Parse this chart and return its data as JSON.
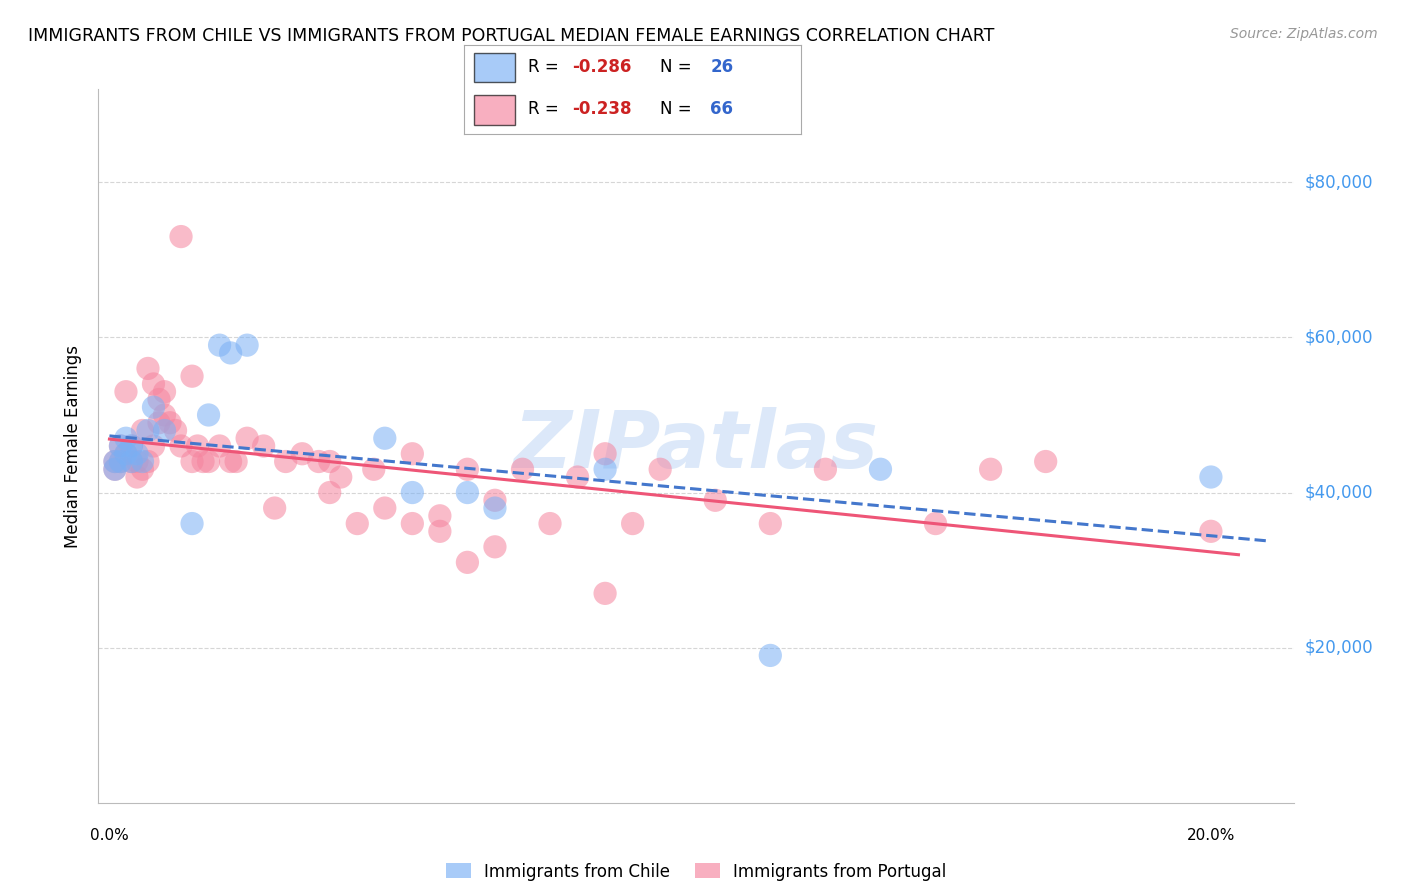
{
  "title": "IMMIGRANTS FROM CHILE VS IMMIGRANTS FROM PORTUGAL MEDIAN FEMALE EARNINGS CORRELATION CHART",
  "source": "Source: ZipAtlas.com",
  "ylabel": "Median Female Earnings",
  "x_ticks": [
    0.0,
    0.04,
    0.08,
    0.12,
    0.16,
    0.2
  ],
  "y_ticks": [
    0,
    20000,
    40000,
    60000,
    80000
  ],
  "y_tick_labels": [
    "",
    "$20,000",
    "$40,000",
    "$60,000",
    "$80,000"
  ],
  "xlim": [
    -0.002,
    0.215
  ],
  "ylim": [
    0,
    92000
  ],
  "chile_R": "-0.286",
  "chile_N": "26",
  "portugal_R": "-0.238",
  "portugal_N": "66",
  "chile_scatter": [
    [
      0.001,
      44000
    ],
    [
      0.001,
      43000
    ],
    [
      0.002,
      46000
    ],
    [
      0.002,
      44000
    ],
    [
      0.003,
      47000
    ],
    [
      0.003,
      45000
    ],
    [
      0.004,
      46000
    ],
    [
      0.004,
      44000
    ],
    [
      0.005,
      45000
    ],
    [
      0.006,
      44000
    ],
    [
      0.007,
      48000
    ],
    [
      0.008,
      51000
    ],
    [
      0.01,
      48000
    ],
    [
      0.015,
      36000
    ],
    [
      0.018,
      50000
    ],
    [
      0.02,
      59000
    ],
    [
      0.022,
      58000
    ],
    [
      0.025,
      59000
    ],
    [
      0.05,
      47000
    ],
    [
      0.055,
      40000
    ],
    [
      0.065,
      40000
    ],
    [
      0.07,
      38000
    ],
    [
      0.09,
      43000
    ],
    [
      0.12,
      19000
    ],
    [
      0.14,
      43000
    ],
    [
      0.2,
      42000
    ]
  ],
  "portugal_scatter": [
    [
      0.001,
      44000
    ],
    [
      0.001,
      43000
    ],
    [
      0.002,
      46000
    ],
    [
      0.002,
      44000
    ],
    [
      0.003,
      45000
    ],
    [
      0.003,
      53000
    ],
    [
      0.004,
      46000
    ],
    [
      0.004,
      44000
    ],
    [
      0.005,
      42000
    ],
    [
      0.005,
      44000
    ],
    [
      0.006,
      48000
    ],
    [
      0.006,
      43000
    ],
    [
      0.007,
      56000
    ],
    [
      0.007,
      44000
    ],
    [
      0.008,
      54000
    ],
    [
      0.008,
      46000
    ],
    [
      0.009,
      49000
    ],
    [
      0.009,
      52000
    ],
    [
      0.01,
      53000
    ],
    [
      0.01,
      50000
    ],
    [
      0.011,
      49000
    ],
    [
      0.012,
      48000
    ],
    [
      0.013,
      46000
    ],
    [
      0.013,
      73000
    ],
    [
      0.015,
      55000
    ],
    [
      0.015,
      44000
    ],
    [
      0.016,
      46000
    ],
    [
      0.017,
      44000
    ],
    [
      0.018,
      44000
    ],
    [
      0.02,
      46000
    ],
    [
      0.022,
      44000
    ],
    [
      0.023,
      44000
    ],
    [
      0.025,
      47000
    ],
    [
      0.028,
      46000
    ],
    [
      0.03,
      38000
    ],
    [
      0.032,
      44000
    ],
    [
      0.035,
      45000
    ],
    [
      0.038,
      44000
    ],
    [
      0.04,
      44000
    ],
    [
      0.04,
      40000
    ],
    [
      0.042,
      42000
    ],
    [
      0.045,
      36000
    ],
    [
      0.048,
      43000
    ],
    [
      0.05,
      38000
    ],
    [
      0.055,
      45000
    ],
    [
      0.055,
      36000
    ],
    [
      0.06,
      37000
    ],
    [
      0.06,
      35000
    ],
    [
      0.065,
      43000
    ],
    [
      0.065,
      31000
    ],
    [
      0.07,
      39000
    ],
    [
      0.07,
      33000
    ],
    [
      0.075,
      43000
    ],
    [
      0.08,
      36000
    ],
    [
      0.085,
      42000
    ],
    [
      0.09,
      45000
    ],
    [
      0.09,
      27000
    ],
    [
      0.095,
      36000
    ],
    [
      0.1,
      43000
    ],
    [
      0.11,
      39000
    ],
    [
      0.12,
      36000
    ],
    [
      0.13,
      43000
    ],
    [
      0.15,
      36000
    ],
    [
      0.16,
      43000
    ],
    [
      0.17,
      44000
    ],
    [
      0.2,
      35000
    ]
  ],
  "chile_color": "#7ab0f5",
  "portugal_color": "#f5849e",
  "chile_line_color": "#4477cc",
  "portugal_line_color": "#ee5577",
  "watermark": "ZIPatlas",
  "watermark_color": "#c5daf5",
  "background_color": "#ffffff",
  "grid_color": "#cccccc",
  "right_label_color": "#4499ee",
  "legend_chile_color": "#7ab0f5",
  "legend_portugal_color": "#f5849e"
}
